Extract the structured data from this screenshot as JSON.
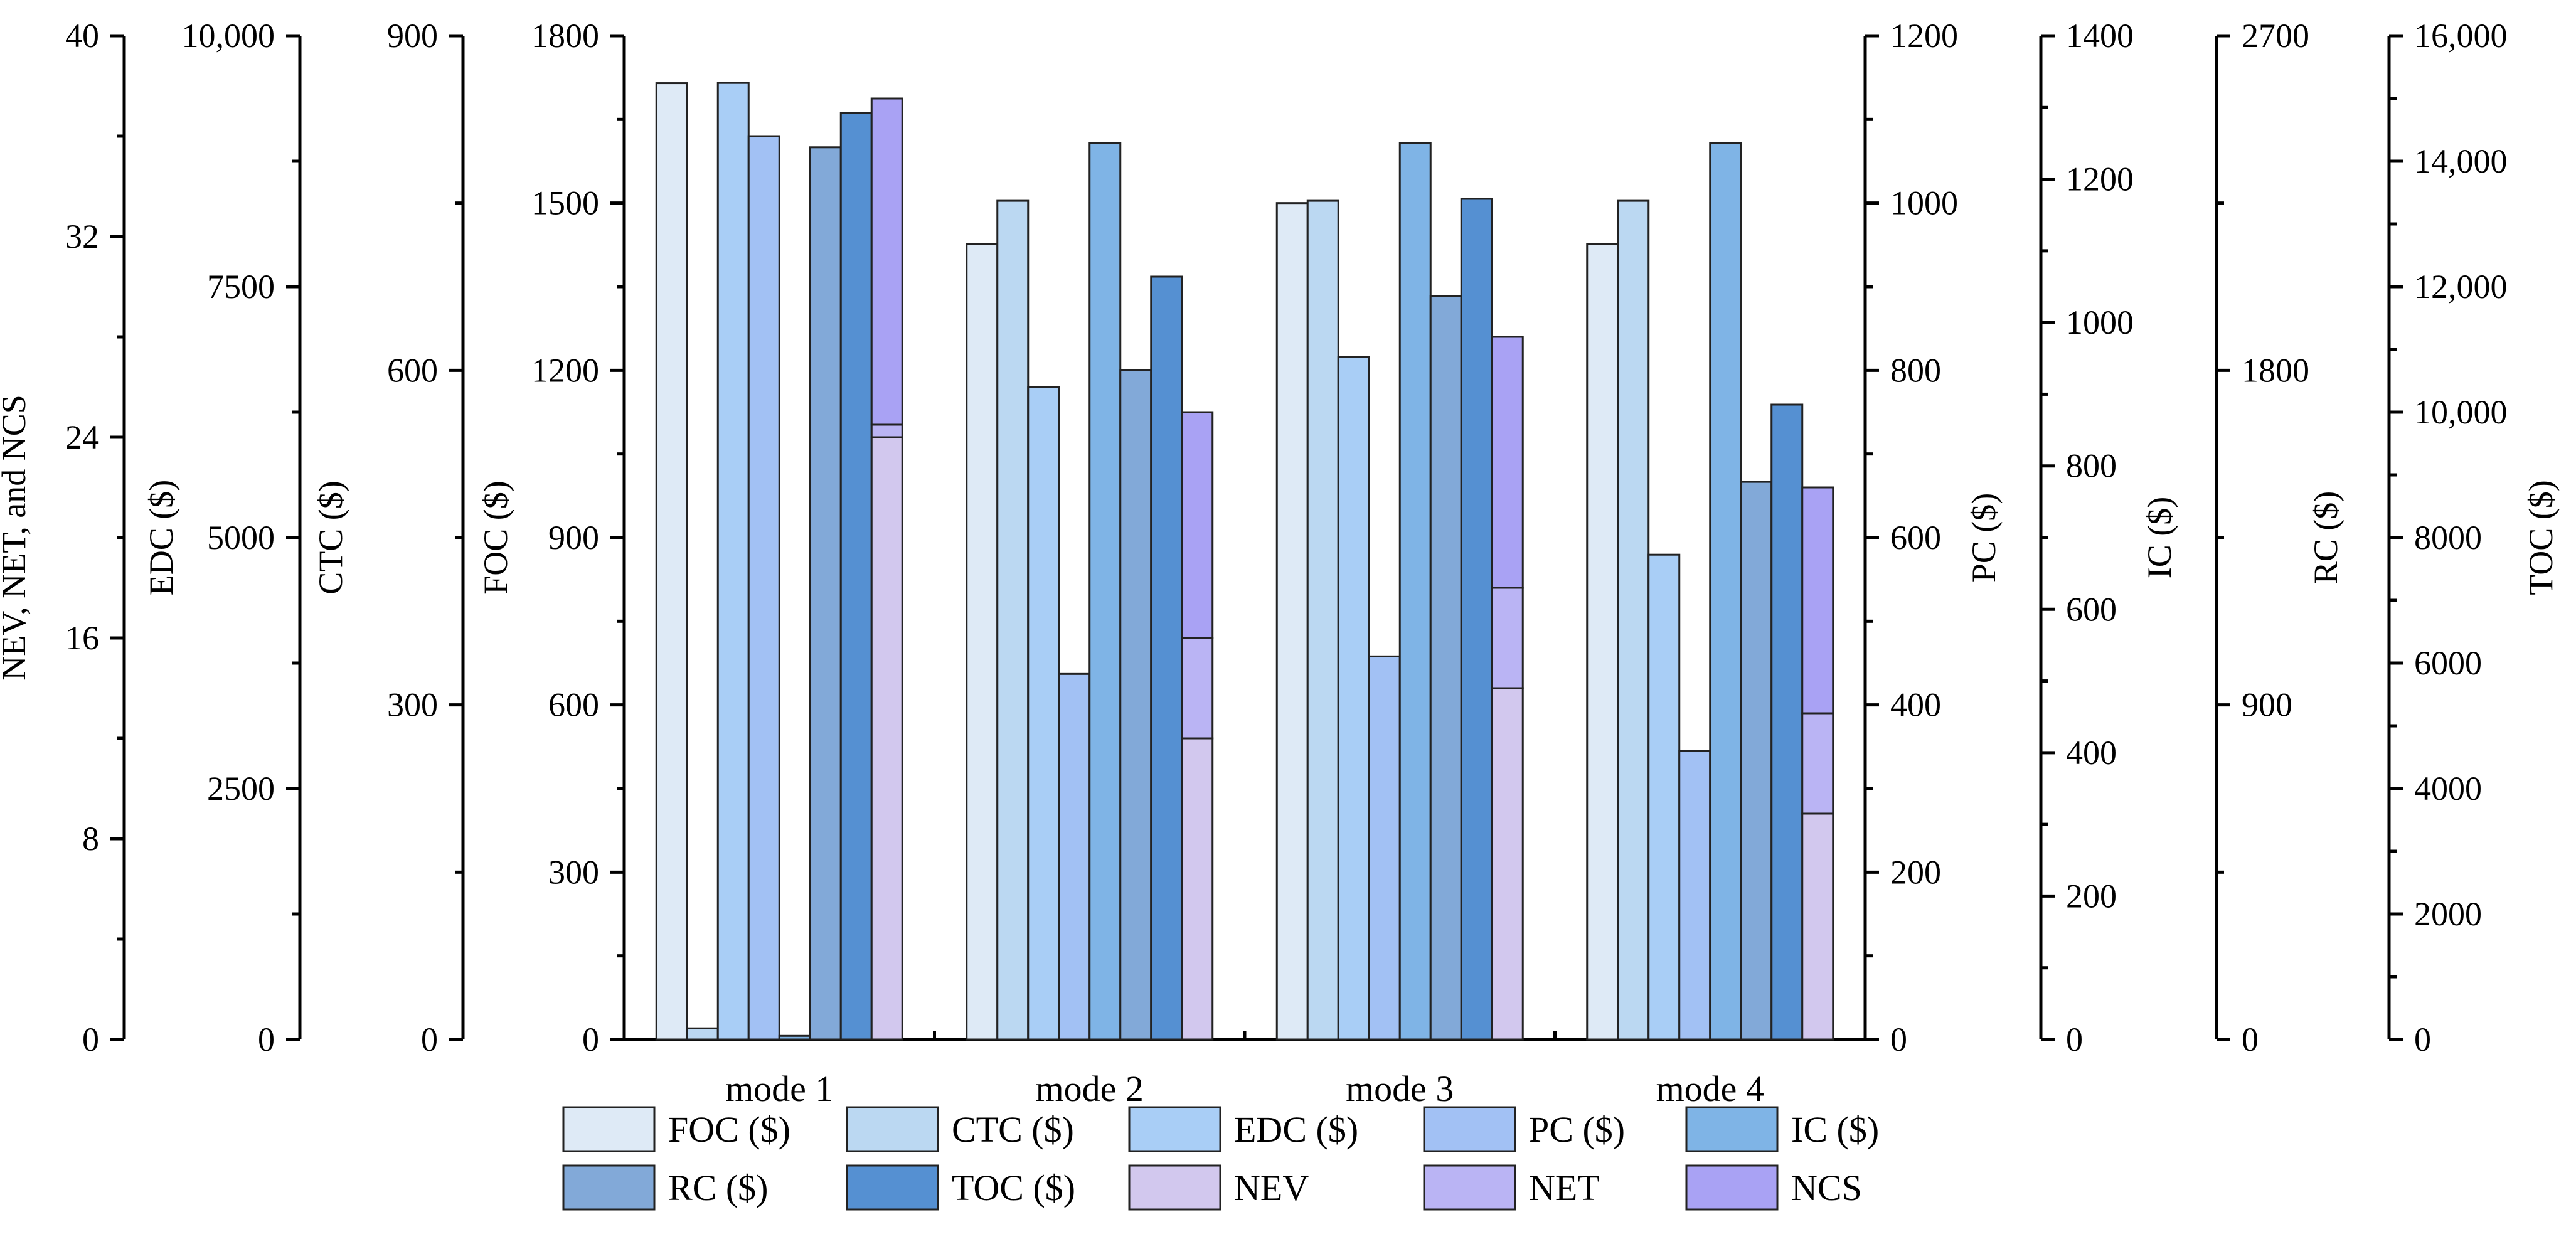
{
  "chart_data": {
    "type": "bar",
    "categories": [
      "mode 1",
      "mode 2",
      "mode 3",
      "mode 4"
    ],
    "colors": {
      "FOC ($)": "#DEEAF6",
      "CTC ($)": "#BBD8F2",
      "EDC ($)": "#A9CEF6",
      "PC ($)": "#A2C1F4",
      "IC ($)": "#7FB4E6",
      "RC ($)": "#82A9D8",
      "TOC ($)": "#5590D2",
      "NEV": "#D2C8EE",
      "NET": "#BAB4F4",
      "NCS": "#A9A2F4"
    },
    "axes": [
      {
        "id": "nev",
        "title": "NEV, NET, and NCS",
        "ylim": [
          0,
          40
        ],
        "ticks": [
          "0",
          "8",
          "16",
          "24",
          "32",
          "40"
        ],
        "side": "left"
      },
      {
        "id": "edc",
        "title": "EDC ($)",
        "ylim": [
          0,
          10000
        ],
        "ticks": [
          "0",
          "2500",
          "5000",
          "7500",
          "10,000"
        ],
        "side": "left"
      },
      {
        "id": "ctc",
        "title": "CTC ($)",
        "ylim": [
          0,
          900
        ],
        "ticks": [
          "0",
          "300",
          "600",
          "900"
        ],
        "side": "left"
      },
      {
        "id": "foc",
        "title": "FOC ($)",
        "ylim": [
          0,
          1800
        ],
        "ticks": [
          "0",
          "300",
          "600",
          "900",
          "1200",
          "1500",
          "1800"
        ],
        "side": "left"
      },
      {
        "id": "pc",
        "title": "PC ($)",
        "ylim": [
          0,
          1200
        ],
        "ticks": [
          "0",
          "200",
          "400",
          "600",
          "800",
          "1000",
          "1200"
        ],
        "side": "right"
      },
      {
        "id": "ic",
        "title": "IC ($)",
        "ylim": [
          0,
          1400
        ],
        "ticks": [
          "0",
          "200",
          "400",
          "600",
          "800",
          "1000",
          "1200",
          "1400"
        ],
        "side": "right"
      },
      {
        "id": "rc",
        "title": "RC ($)",
        "ylim": [
          0,
          2700
        ],
        "ticks": [
          "0",
          "900",
          "1800",
          "2700"
        ],
        "side": "right"
      },
      {
        "id": "toc",
        "title": "TOC ($)",
        "ylim": [
          0,
          16000
        ],
        "ticks": [
          "0",
          "2000",
          "4000",
          "6000",
          "8000",
          "10,000",
          "12,000",
          "14,000",
          "16,000"
        ],
        "side": "right"
      }
    ],
    "series": [
      {
        "name": "FOC ($)",
        "axis": "foc",
        "values": [
          1715,
          1427,
          1500,
          1427
        ]
      },
      {
        "name": "CTC ($)",
        "axis": "ctc",
        "values": [
          10,
          752,
          752,
          752
        ]
      },
      {
        "name": "EDC ($)",
        "axis": "edc",
        "values": [
          9530,
          6500,
          6800,
          4830
        ]
      },
      {
        "name": "PC ($)",
        "axis": "pc",
        "values": [
          1080,
          437,
          458,
          345
        ]
      },
      {
        "name": "IC ($)",
        "axis": "ic",
        "values": [
          5,
          1250,
          1250,
          1250
        ]
      },
      {
        "name": "RC ($)",
        "axis": "rc",
        "values": [
          2400,
          1800,
          2000,
          1500
        ]
      },
      {
        "name": "TOC ($)",
        "axis": "toc",
        "values": [
          14770,
          12160,
          13400,
          10120
        ]
      }
    ],
    "stacked": {
      "axis": "nev",
      "series": [
        {
          "name": "NEV",
          "values": [
            24.0,
            12.0,
            14.0,
            9.0
          ]
        },
        {
          "name": "NET",
          "values": [
            0.5,
            4.0,
            4.0,
            4.0
          ]
        },
        {
          "name": "NCS",
          "values": [
            13.0,
            9.0,
            10.0,
            9.0
          ]
        }
      ]
    },
    "legend": [
      "FOC ($)",
      "CTC ($)",
      "EDC ($)",
      "PC ($)",
      "IC ($)",
      "RC ($)",
      "TOC ($)",
      "NEV",
      "NET",
      "NCS"
    ],
    "legend_position": "bottom"
  }
}
